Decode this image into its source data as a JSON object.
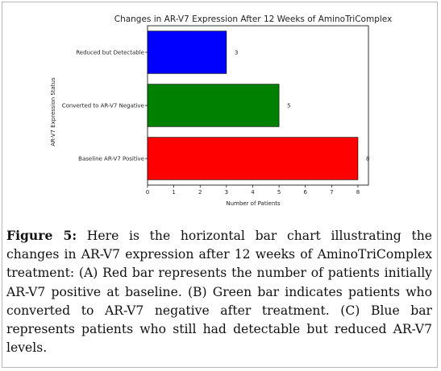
{
  "chart_data": {
    "type": "bar",
    "orientation": "horizontal",
    "title": "Changes in AR-V7 Expression After 12 Weeks of AminoTriComplex",
    "xlabel": "Number of Patients",
    "ylabel": "AR-V7 Expression Status",
    "categories": [
      "Baseline AR-V7 Positive",
      "Converted to AR-V7 Negative",
      "Reduced but Detectable"
    ],
    "values": [
      8,
      5,
      3
    ],
    "data_labels": [
      "8",
      "5",
      "3"
    ],
    "colors": [
      "#ff0000",
      "#008000",
      "#0000ff"
    ],
    "xlim": [
      0,
      8.4
    ],
    "xticks": [
      "0",
      "1",
      "2",
      "3",
      "4",
      "5",
      "6",
      "7",
      "8"
    ],
    "grid": false
  },
  "caption": {
    "label": "Figure 5:",
    "text": " Here is the horizontal bar chart illustrating the changes in AR-V7 expression after 12 weeks of AminoTriComplex treatment: (A) Red bar represents the number of patients initially AR-V7 positive at baseline. (B) Green bar indicates patients who converted to AR-V7 negative after treatment. (C) Blue bar represents patients who still had detectable but reduced AR-V7 levels."
  }
}
